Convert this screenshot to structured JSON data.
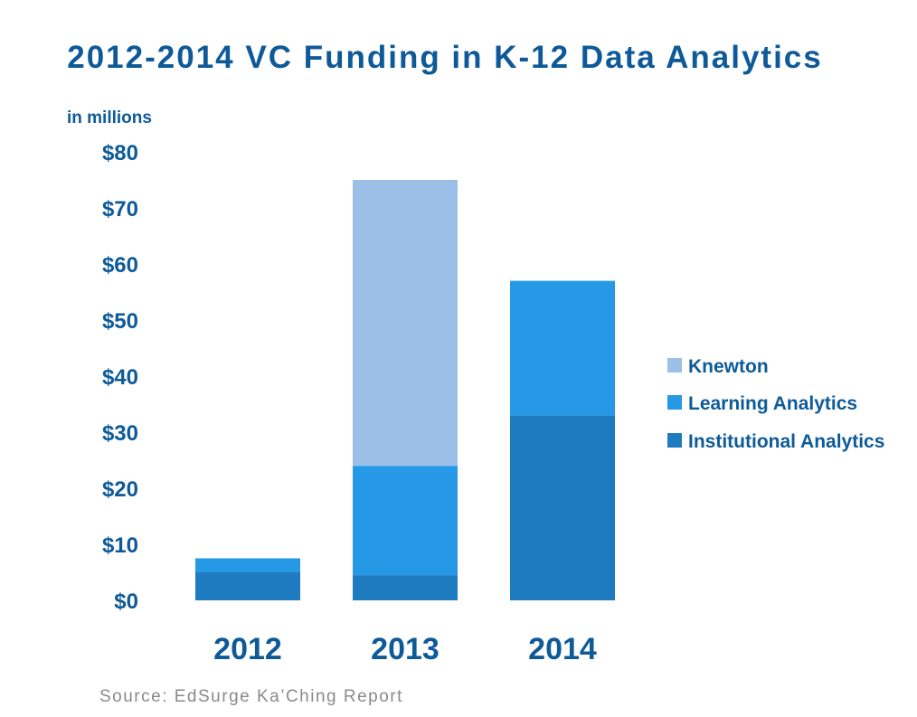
{
  "chart_data": {
    "type": "bar",
    "stacked": true,
    "title": "2012-2014 VC Funding in K-12 Data Analytics",
    "unit_label": "in millions",
    "categories": [
      "2012",
      "2013",
      "2014"
    ],
    "series": [
      {
        "name": "Institutional Analytics",
        "values": [
          5,
          4.5,
          33
        ],
        "color": "#1f7bc0"
      },
      {
        "name": "Learning Analytics",
        "values": [
          2.5,
          19.5,
          24
        ],
        "color": "#2699e6"
      },
      {
        "name": "Knewton",
        "values": [
          0,
          51,
          0
        ],
        "color": "#9bbfe7"
      }
    ],
    "ylim": [
      0,
      80
    ],
    "yticks": [
      0,
      10,
      20,
      30,
      40,
      50,
      60,
      70,
      80
    ],
    "ytick_labels": [
      "$0",
      "$10",
      "$20",
      "$30",
      "$40",
      "$50",
      "$60",
      "$70",
      "$80"
    ],
    "legend_order": [
      "Knewton",
      "Learning Analytics",
      "Institutional Analytics"
    ],
    "legend_position": "right",
    "grid": false,
    "source": "Source: EdSurge Ka’Ching Report"
  },
  "colors": {
    "title": "#0e5a99",
    "axis_text": "#0e5a99",
    "source": "#8a8a8a"
  }
}
